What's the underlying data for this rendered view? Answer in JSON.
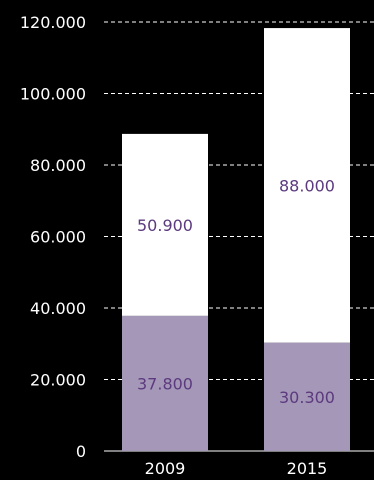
{
  "chart_data": {
    "type": "bar",
    "stacked": true,
    "categories": [
      "2009",
      "2015"
    ],
    "series": [
      {
        "values": [
          37800,
          30300
        ],
        "labels": [
          "37.800",
          "30.300"
        ],
        "color": "#a497b8"
      },
      {
        "values": [
          50900,
          88000
        ],
        "labels": [
          "50.900",
          "88.000"
        ],
        "color": "#ffffff"
      }
    ],
    "ylim": [
      0,
      120000
    ],
    "yticks": [
      0,
      20000,
      40000,
      60000,
      80000,
      100000,
      120000
    ],
    "ytick_labels": [
      "0",
      "20.000",
      "40.000",
      "60.000",
      "80.000",
      "100.000",
      "120.000"
    ],
    "grid": true,
    "legend": "none",
    "title": "",
    "xlabel": "",
    "ylabel": "",
    "colors": {
      "background": "#000000",
      "grid": "#ffffff",
      "text": "#ffffff",
      "data_label": "#5c3a7e"
    }
  }
}
